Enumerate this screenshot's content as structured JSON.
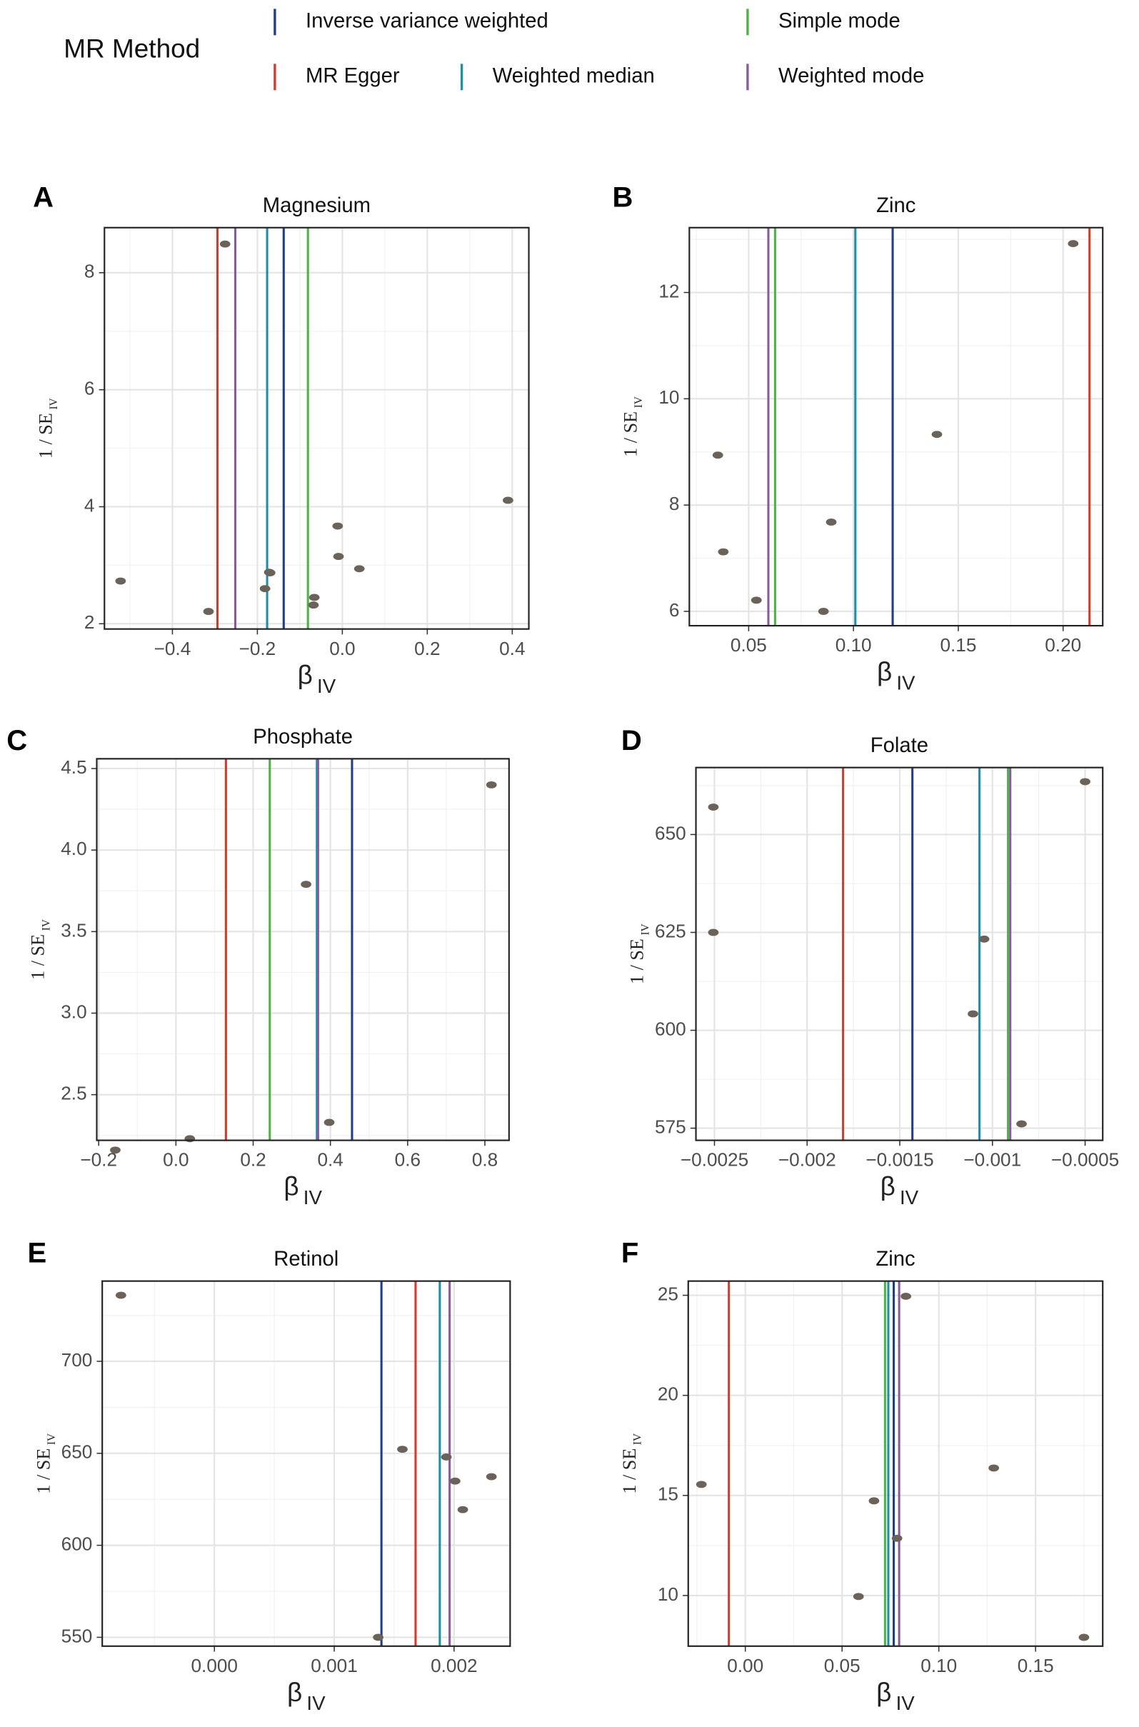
{
  "legend": {
    "title": "MR Method",
    "entries": [
      {
        "name": "Inverse variance weighted",
        "color": "#1f3e8c"
      },
      {
        "name": "MR Egger",
        "color": "#d63a2b"
      },
      {
        "name": "Weighted median",
        "color": "#1e8fa6"
      },
      {
        "name": "Simple mode",
        "color": "#4db347"
      },
      {
        "name": "Weighted mode",
        "color": "#8a5a9e"
      }
    ]
  },
  "chart_data": [
    {
      "type": "scatter",
      "label": "A",
      "title": "Magnesium",
      "xlabel": {
        "main": "β",
        "sub": "IV"
      },
      "ylabel": {
        "main": "1 / SE",
        "sub": "IV"
      },
      "grid": true,
      "xlim": [
        -0.56,
        0.439
      ],
      "xticks": [
        {
          "value": -0.4,
          "label": "−0.4"
        },
        {
          "value": -0.2,
          "label": "−0.2"
        },
        {
          "value": 0,
          "label": "0.0"
        },
        {
          "value": 0.2,
          "label": "0.2"
        },
        {
          "value": 0.4,
          "label": "0.4"
        }
      ],
      "ylim": [
        1.91,
        8.77
      ],
      "yticks": [
        2,
        4,
        6,
        8
      ],
      "lines": [
        {
          "name": "MR Egger",
          "color": "#d63a2b",
          "value": -0.294
        },
        {
          "name": "Weighted mode",
          "color": "#8a5a9e",
          "value": -0.252
        },
        {
          "name": "Weighted median",
          "color": "#1e8fa6",
          "value": -0.177
        },
        {
          "name": "Inverse variance weighted",
          "color": "#1f3e8c",
          "value": -0.138
        },
        {
          "name": "Simple mode",
          "color": "#4db347",
          "value": -0.081
        }
      ],
      "points": {
        "color": "#6b625a",
        "x": [
          -0.522,
          -0.276,
          -0.315,
          -0.182,
          -0.172,
          -0.17,
          -0.066,
          -0.068,
          -0.011,
          -0.009,
          0.04,
          0.39
        ],
        "y": [
          2.73,
          8.49,
          2.21,
          2.6,
          2.88,
          2.87,
          2.45,
          2.32,
          3.67,
          3.15,
          2.94,
          4.11
        ]
      }
    },
    {
      "type": "scatter",
      "label": "B",
      "title": "Zinc",
      "xlabel": {
        "main": "β",
        "sub": "IV"
      },
      "ylabel": {
        "main": "1 / SE",
        "sub": "IV"
      },
      "grid": true,
      "xlim": [
        0.0217,
        0.2189
      ],
      "xticks": [
        0.05,
        {
          "value": 0.1,
          "label": "0.10"
        },
        0.15,
        {
          "value": 0.2,
          "label": "0.20"
        }
      ],
      "ylim": [
        5.73,
        13.22
      ],
      "yticks": [
        6,
        8,
        10,
        12
      ],
      "lines": [
        {
          "name": "Weighted mode",
          "color": "#8a5a9e",
          "value": 0.0594
        },
        {
          "name": "Simple mode",
          "color": "#4db347",
          "value": 0.0626
        },
        {
          "name": "Weighted median",
          "color": "#1e8fa6",
          "value": 0.1009
        },
        {
          "name": "Inverse variance weighted",
          "color": "#1f3e8c",
          "value": 0.1187
        },
        {
          "name": "MR Egger",
          "color": "#d63a2b",
          "value": 0.2126
        }
      ],
      "points": {
        "color": "#6b625a",
        "x": [
          0.0353,
          0.0379,
          0.0537,
          0.0857,
          0.0894,
          0.1398,
          0.2048
        ],
        "y": [
          8.94,
          7.12,
          6.21,
          6.0,
          7.68,
          9.33,
          12.92
        ]
      }
    },
    {
      "type": "scatter",
      "label": "C",
      "title": "Phosphate",
      "xlabel": {
        "main": "β",
        "sub": "IV"
      },
      "ylabel": {
        "main": "1 / SE",
        "sub": "IV"
      },
      "grid": true,
      "xlim": [
        -0.205,
        0.8625
      ],
      "xticks": [
        {
          "value": -0.2,
          "label": "−0.2"
        },
        {
          "value": 0,
          "label": "0.0"
        },
        0.2,
        0.4,
        0.6,
        0.8
      ],
      "ylim": [
        2.22,
        4.56
      ],
      "yticks": [
        {
          "value": 2.5,
          "label": "2.5"
        },
        {
          "value": 3,
          "label": "3.0"
        },
        {
          "value": 3.5,
          "label": "3.5"
        },
        {
          "value": 4,
          "label": "4.0"
        },
        {
          "value": 4.5,
          "label": "4.5"
        }
      ],
      "lines": [
        {
          "name": "MR Egger",
          "color": "#d63a2b",
          "value": 0.1295
        },
        {
          "name": "Simple mode",
          "color": "#4db347",
          "value": 0.243
        },
        {
          "name": "Weighted median",
          "color": "#1e8fa6",
          "value": 0.365
        },
        {
          "name": "Weighted mode",
          "color": "#8a5a9e",
          "value": 0.368
        },
        {
          "name": "Inverse variance weighted",
          "color": "#1f3e8c",
          "value": 0.456
        }
      ],
      "points": {
        "color": "#6b625a",
        "x": [
          -0.157,
          0.036,
          0.337,
          0.397,
          0.817
        ],
        "y": [
          2.16,
          2.23,
          3.79,
          2.33,
          4.4
        ]
      }
    },
    {
      "type": "scatter",
      "label": "D",
      "title": "Folate",
      "xlabel": {
        "main": "β",
        "sub": "IV"
      },
      "ylabel": {
        "main": "1 / SE",
        "sub": "IV"
      },
      "grid": true,
      "xlim": [
        -0.0026,
        -0.000405
      ],
      "xticks": [
        {
          "value": -0.0025,
          "label": "−0.0025"
        },
        {
          "value": -0.002,
          "label": "−0.002"
        },
        {
          "value": -0.0015,
          "label": "−0.0015"
        },
        {
          "value": -0.001,
          "label": "−0.001"
        },
        {
          "value": -0.0005,
          "label": "−0.0005"
        }
      ],
      "ylim": [
        571.9,
        667.1
      ],
      "yticks": [
        575,
        600,
        625,
        650
      ],
      "lines": [
        {
          "name": "MR Egger",
          "color": "#d63a2b",
          "value": -0.001806
        },
        {
          "name": "Inverse variance weighted",
          "color": "#1f3e8c",
          "value": -0.001432
        },
        {
          "name": "Weighted median",
          "color": "#1e8fa6",
          "value": -0.00107
        },
        {
          "name": "Simple mode",
          "color": "#4db347",
          "value": -0.000916
        },
        {
          "name": "Weighted mode",
          "color": "#8a5a9e",
          "value": -0.000904
        }
      ],
      "points": {
        "color": "#6b625a",
        "x": [
          -0.002506,
          -0.002506,
          -0.001105,
          -0.001045,
          -0.000843,
          -0.0005
        ],
        "y": [
          657.0,
          625.0,
          604.2,
          623.3,
          576.1,
          663.5
        ]
      }
    },
    {
      "type": "scatter",
      "label": "E",
      "title": "Retinol",
      "xlabel": {
        "main": "β",
        "sub": "IV"
      },
      "ylabel": {
        "main": "1 / SE",
        "sub": "IV"
      },
      "grid": true,
      "xlim": [
        -0.000936,
        0.002468
      ],
      "xticks": [
        {
          "value": 0,
          "label": "0.000"
        },
        {
          "value": 0.001,
          "label": "0.001"
        },
        {
          "value": 0.002,
          "label": "0.002"
        }
      ],
      "ylim": [
        545.2,
        743.6
      ],
      "yticks": [
        550,
        600,
        650,
        700
      ],
      "lines": [
        {
          "name": "Inverse variance weighted",
          "color": "#1f3e8c",
          "value": 0.001394
        },
        {
          "name": "MR Egger",
          "color": "#d63a2b",
          "value": 0.001679
        },
        {
          "name": "Weighted median",
          "color": "#1e8fa6",
          "value": 0.001881
        },
        {
          "name": "Weighted mode",
          "color": "#8a5a9e",
          "value": 0.001963
        }
      ],
      "points": {
        "color": "#6b625a",
        "x": [
          -0.00078,
          0.001367,
          0.001569,
          0.001936,
          0.002009,
          0.002073,
          0.002312
        ],
        "y": [
          735.9,
          550.0,
          652.2,
          648.0,
          634.9,
          619.4,
          637.3
        ]
      }
    },
    {
      "type": "scatter",
      "label": "F",
      "title": "Zinc",
      "xlabel": {
        "main": "β",
        "sub": "IV"
      },
      "ylabel": {
        "main": "1 / SE",
        "sub": "IV"
      },
      "grid": true,
      "xlim": [
        -0.0295,
        0.1847
      ],
      "xticks": [
        {
          "value": 0,
          "label": "0.00"
        },
        0.05,
        {
          "value": 0.1,
          "label": "0.10"
        },
        0.15
      ],
      "ylim": [
        7.47,
        25.71
      ],
      "yticks": [
        10,
        15,
        20,
        25
      ],
      "lines": [
        {
          "name": "MR Egger",
          "color": "#d63a2b",
          "value": -0.0085
        },
        {
          "name": "Simple mode",
          "color": "#4db347",
          "value": 0.0722
        },
        {
          "name": "Weighted median",
          "color": "#1e8fa6",
          "value": 0.0739
        },
        {
          "name": "Inverse variance weighted",
          "color": "#1f3e8c",
          "value": 0.0767
        },
        {
          "name": "Weighted mode",
          "color": "#8a5a9e",
          "value": 0.0795
        }
      ],
      "points": {
        "color": "#6b625a",
        "x": [
          -0.0227,
          0.0585,
          0.0665,
          0.0784,
          0.083,
          0.1284,
          0.175
        ],
        "y": [
          15.55,
          9.95,
          14.73,
          12.86,
          24.95,
          16.37,
          7.91
        ]
      }
    }
  ]
}
